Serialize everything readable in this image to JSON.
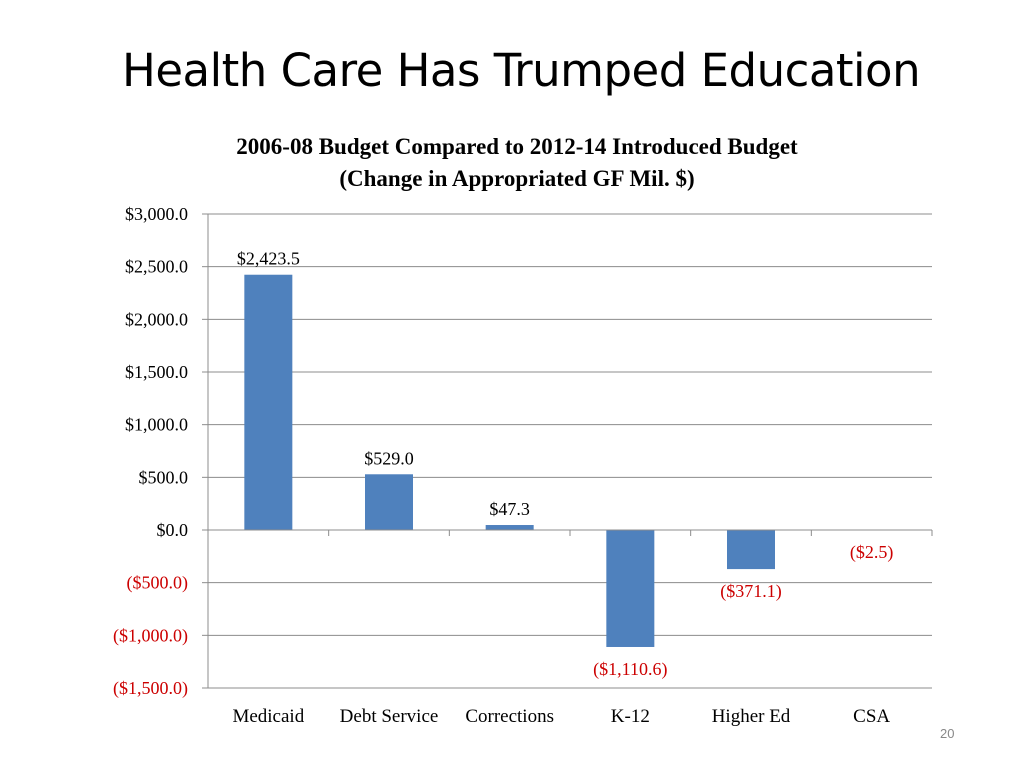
{
  "slide": {
    "title": "Health Care Has Trumped Education",
    "page_number": "20"
  },
  "chart_data": {
    "type": "bar",
    "title": "2006-08 Budget Compared to 2012-14 Introduced Budget",
    "subtitle": "(Change in Appropriated GF Mil. $)",
    "xlabel": "",
    "ylabel": "",
    "categories": [
      "Medicaid",
      "Debt Service",
      "Corrections",
      "K-12",
      "Higher Ed",
      "CSA"
    ],
    "values": [
      2423.5,
      529.0,
      47.3,
      -1110.6,
      -371.1,
      -2.5
    ],
    "data_labels": [
      "$2,423.5",
      "$529.0",
      "$47.3",
      "($1,110.6)",
      "($371.1)",
      "($2.5)"
    ],
    "ylim": [
      -1500,
      3000
    ],
    "yticks": [
      3000,
      2500,
      2000,
      1500,
      1000,
      500,
      0,
      -500,
      -1000,
      -1500
    ],
    "ytick_labels": [
      "$3,000.0",
      "$2,500.0",
      "$2,000.0",
      "$1,500.0",
      "$1,000.0",
      "$500.0",
      "$0.0",
      "($500.0)",
      "($1,000.0)",
      "($1,500.0)"
    ],
    "grid": true,
    "legend": "none",
    "colors": {
      "bar": "#4f81bd",
      "negative_label": "#cc0000",
      "grid": "#8c8c8c"
    }
  }
}
